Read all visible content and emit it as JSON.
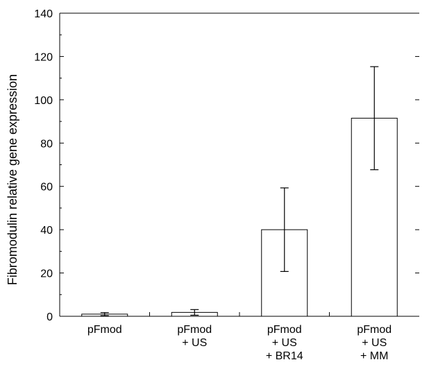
{
  "chart_data": {
    "type": "bar",
    "title": "",
    "xlabel": "",
    "ylabel": "Fibromodulin relative gene expression",
    "ylim": [
      0,
      140
    ],
    "yticks": [
      0,
      20,
      40,
      60,
      80,
      100,
      120,
      140
    ],
    "grid": false,
    "categories": [
      [
        "pFmod"
      ],
      [
        "pFmod",
        "+ US"
      ],
      [
        "pFmod",
        "+ US",
        "+ BR14"
      ],
      [
        "pFmod",
        "+ US",
        "+ MM"
      ]
    ],
    "values": [
      1.0,
      1.8,
      40.0,
      91.5
    ],
    "error": [
      0.7,
      1.3,
      19.3,
      23.8
    ],
    "bar_fill": "#ffffff",
    "bar_stroke": "#000000"
  }
}
